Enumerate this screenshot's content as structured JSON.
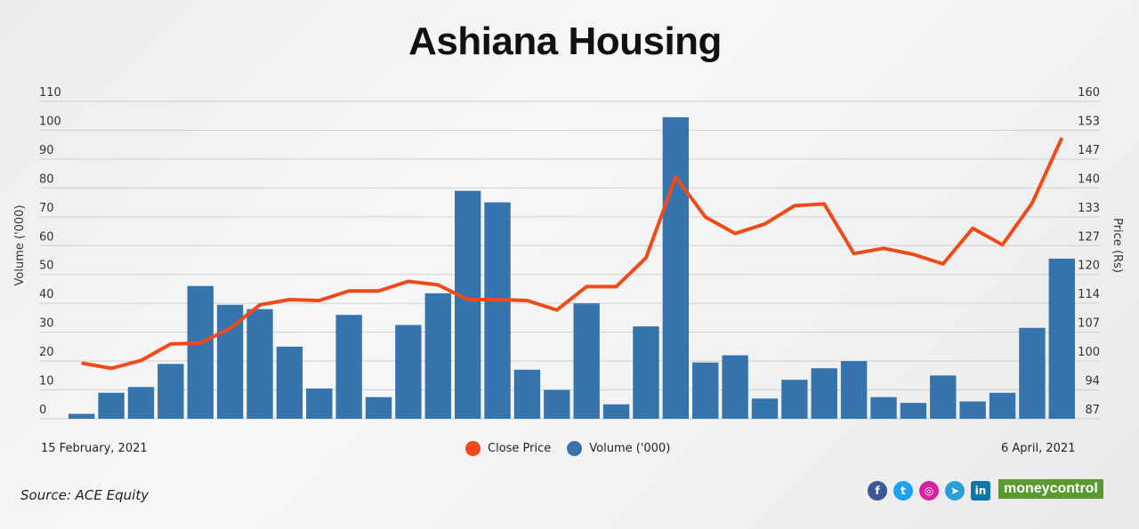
{
  "chart_data": {
    "type": "bar+line",
    "title": "Ashiana Housing",
    "ylabel_left": "Volume ('000)",
    "ylabel_right": "Price (Rs)",
    "y_left_ticks": [
      0,
      10,
      20,
      30,
      40,
      50,
      60,
      70,
      80,
      90,
      100,
      110
    ],
    "y_left_range": [
      0,
      110
    ],
    "y_right_ticks": [
      87,
      94,
      100,
      107,
      114,
      120,
      127,
      133,
      140,
      147,
      153,
      160
    ],
    "y_right_range": [
      87,
      160
    ],
    "x_start_label": "15 February, 2021",
    "x_end_label": "6 April, 2021",
    "grid": true,
    "legend_placement": "bottom",
    "series": [
      {
        "name": "Volume ('000)",
        "type": "bar",
        "color": "#3574ac",
        "values": [
          1.7,
          9,
          11,
          19,
          46,
          39.5,
          38,
          25,
          10.5,
          36,
          7.5,
          32.5,
          43.5,
          79,
          75,
          17,
          10,
          40,
          5,
          32,
          104.5,
          19.5,
          22,
          7,
          13.5,
          17.5,
          20,
          7.5,
          5.5,
          15,
          6,
          9,
          31.5,
          55.5
        ]
      },
      {
        "name": "Close Price",
        "type": "line",
        "color": "#f04a1a",
        "values": [
          99.8,
          98.6,
          100.4,
          104.2,
          104.4,
          107.8,
          113.2,
          114.4,
          114.2,
          116.4,
          116.4,
          118.6,
          117.8,
          114.4,
          114.4,
          114.2,
          112,
          117.4,
          117.4,
          124,
          142.6,
          133.4,
          129.6,
          131.8,
          136,
          136.4,
          125,
          126.2,
          124.8,
          122.6,
          130.8,
          127,
          136.6,
          151.6
        ]
      }
    ]
  },
  "legend": {
    "close_price": "Close Price",
    "volume": "Volume ('000)"
  },
  "footer": {
    "source": "Source: ACE Equity",
    "social_icons": [
      "facebook-icon",
      "twitter-icon",
      "instagram-icon",
      "telegram-icon",
      "linkedin-icon"
    ],
    "logo": "moneycontrol"
  }
}
